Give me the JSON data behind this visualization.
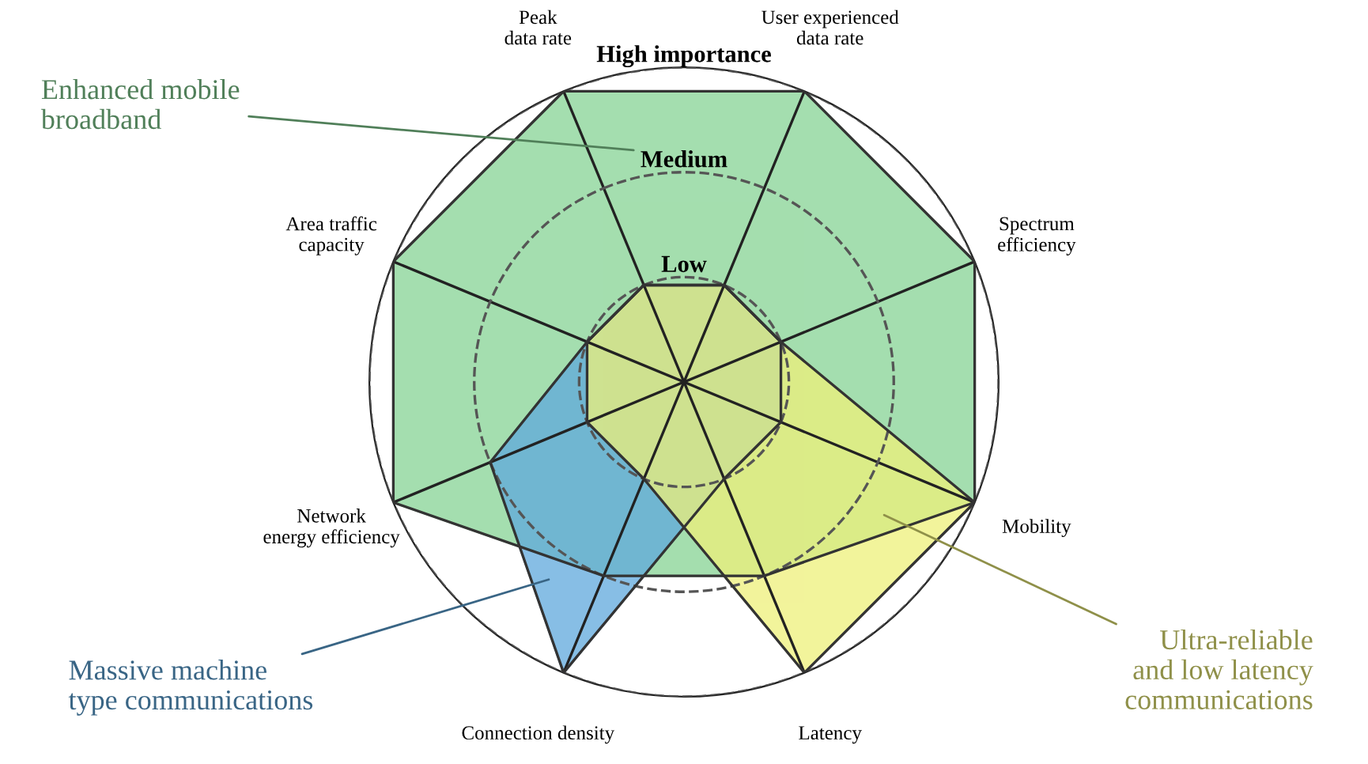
{
  "chart_data": {
    "type": "radar",
    "categories": [
      "Peak\ndata rate",
      "User experienced\ndata rate",
      "Spectrum\nefficiency",
      "Mobility",
      "Latency",
      "Connection density",
      "Network\nenergy efficiency",
      "Area traffic\ncapacity"
    ],
    "series": [
      {
        "name": "Enhanced mobile\nbroadband",
        "color": "#86d394",
        "values": [
          3,
          3,
          3,
          3,
          2,
          2,
          3,
          3
        ]
      },
      {
        "name": "Massive machine\ntype communications",
        "color": "#5fa9dd",
        "values": [
          1,
          1,
          1,
          1,
          1,
          3,
          2,
          1
        ]
      },
      {
        "name": "Ultra-reliable\nand low latency\ncommunications",
        "color": "#eef07a",
        "values": [
          1,
          1,
          1,
          3,
          3,
          1,
          1,
          1
        ]
      }
    ],
    "ylim": [
      0,
      3
    ],
    "yticks": [
      {
        "value": 1,
        "label": "Low"
      },
      {
        "value": 2,
        "label": "Medium"
      },
      {
        "value": 3,
        "label": "High importance"
      }
    ],
    "grid": true,
    "legend": false
  }
}
